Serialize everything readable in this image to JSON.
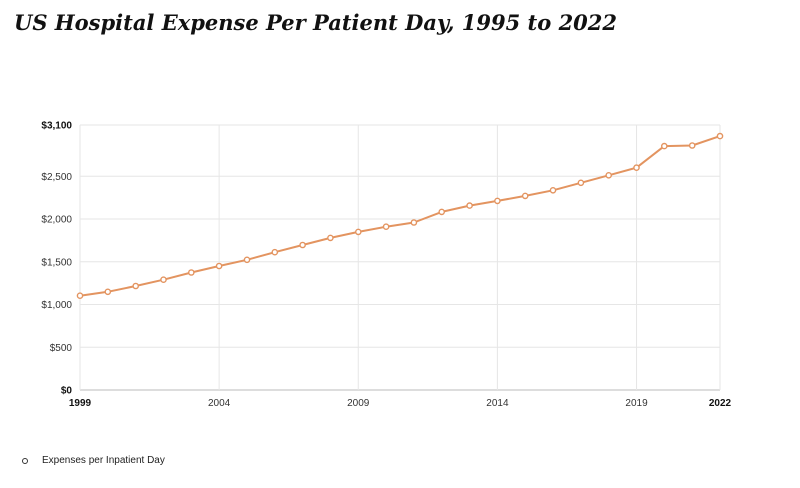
{
  "title": "US Hospital Expense Per Patient Day, 1995 to 2022",
  "chart_data": {
    "type": "line",
    "title": "US Hospital Expense Per Patient Day, 1995 to 2022",
    "xlabel": "",
    "ylabel": "",
    "xlim": [
      1999,
      2022
    ],
    "ylim": [
      0,
      3100
    ],
    "grid": true,
    "legend_position": "bottom-left",
    "x_ticks": [
      {
        "value": 1999,
        "label": "1999",
        "bold": true
      },
      {
        "value": 2004,
        "label": "2004",
        "bold": false
      },
      {
        "value": 2009,
        "label": "2009",
        "bold": false
      },
      {
        "value": 2014,
        "label": "2014",
        "bold": false
      },
      {
        "value": 2019,
        "label": "2019",
        "bold": false
      },
      {
        "value": 2022,
        "label": "2022",
        "bold": true
      }
    ],
    "y_ticks": [
      {
        "value": 0,
        "label": "$0",
        "bold": true
      },
      {
        "value": 500,
        "label": "$500",
        "bold": false
      },
      {
        "value": 1000,
        "label": "$1,000",
        "bold": false
      },
      {
        "value": 1500,
        "label": "$1,500",
        "bold": false
      },
      {
        "value": 2000,
        "label": "$2,000",
        "bold": false
      },
      {
        "value": 2500,
        "label": "$2,500",
        "bold": false
      },
      {
        "value": 3100,
        "label": "$3,100",
        "bold": true
      }
    ],
    "series": [
      {
        "name": "Expenses per Inpatient Day",
        "color": "#e39460",
        "x": [
          1999,
          2000,
          2001,
          2002,
          2003,
          2004,
          2005,
          2006,
          2007,
          2008,
          2009,
          2010,
          2011,
          2012,
          2013,
          2014,
          2015,
          2016,
          2017,
          2018,
          2019,
          2020,
          2021,
          2022
        ],
        "values": [
          1103,
          1149,
          1217,
          1290,
          1374,
          1450,
          1523,
          1612,
          1696,
          1779,
          1850,
          1910,
          1960,
          2084,
          2157,
          2212,
          2271,
          2336,
          2424,
          2512,
          2600,
          2853,
          2860,
          2970
        ]
      }
    ]
  },
  "legend": {
    "label": "Expenses per Inpatient Day",
    "marker_color": "#333333"
  }
}
